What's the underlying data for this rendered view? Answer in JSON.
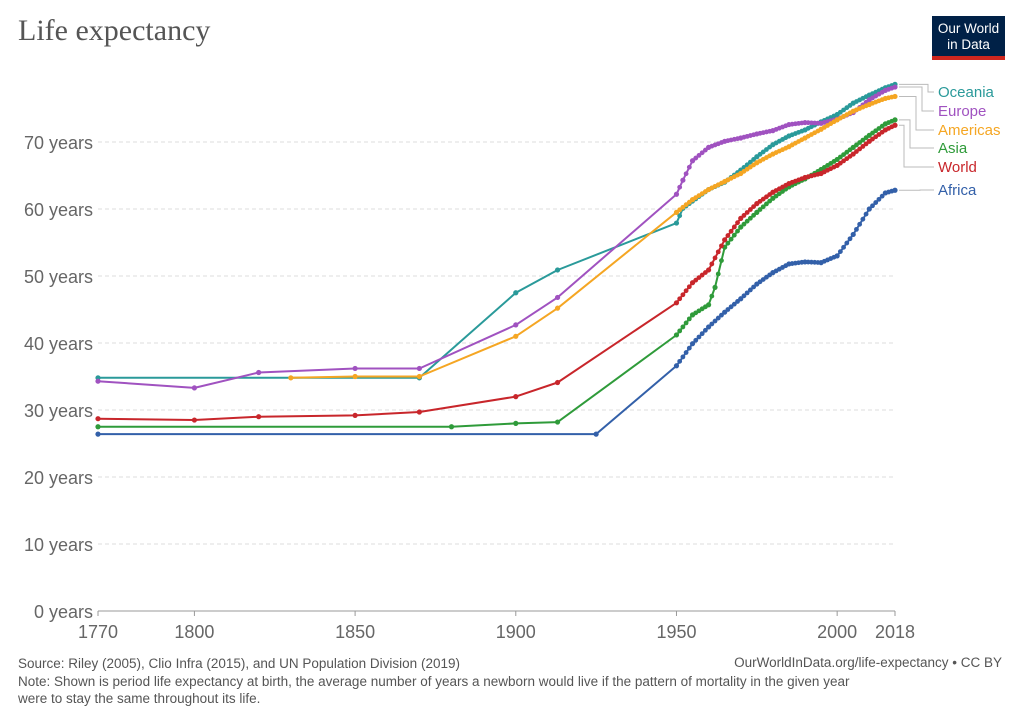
{
  "header": {
    "title": "Life expectancy",
    "logo_line1": "Our World",
    "logo_line2": "in Data"
  },
  "footer": {
    "source": "Source: Riley (2005), Clio Infra (2015), and UN Population Division (2019)",
    "url": "OurWorldInData.org/life-expectancy • CC BY",
    "note_line1": "Note: Shown is period life expectancy at birth, the average number of years a newborn would live if the pattern of mortality in the given year",
    "note_line2": "were to stay the same throughout its life."
  },
  "chart_data": {
    "type": "line",
    "title": "Life expectancy",
    "xlim": [
      1770,
      2018
    ],
    "ylim": [
      0,
      80
    ],
    "x_ticks": [
      1770,
      1800,
      1850,
      1900,
      1950,
      2000,
      2018
    ],
    "y_ticks": [
      {
        "value": 0,
        "label": "0 years"
      },
      {
        "value": 10,
        "label": "10 years"
      },
      {
        "value": 20,
        "label": "20 years"
      },
      {
        "value": 30,
        "label": "30 years"
      },
      {
        "value": 40,
        "label": "40 years"
      },
      {
        "value": 50,
        "label": "50 years"
      },
      {
        "value": 60,
        "label": "60 years"
      },
      {
        "value": 70,
        "label": "70 years"
      }
    ],
    "grid": "horizontal dashed",
    "legend": "right, end-of-line labels",
    "series": [
      {
        "name": "Oceania",
        "color": "#2a9a9a",
        "x": [
          1770,
          1870,
          1900,
          1913,
          1950,
          1952,
          1960,
          1965,
          1970,
          1975,
          1980,
          1985,
          1990,
          1995,
          2000,
          2005,
          2010,
          2015,
          2018
        ],
        "y": [
          34.8,
          34.8,
          47.5,
          50.9,
          57.9,
          60.1,
          62.9,
          64.0,
          65.8,
          67.8,
          69.6,
          70.9,
          71.8,
          73.0,
          74.1,
          75.8,
          77.0,
          78.1,
          78.6
        ]
      },
      {
        "name": "Europe",
        "color": "#a052c0",
        "x": [
          1770,
          1800,
          1820,
          1850,
          1870,
          1900,
          1913,
          1950,
          1952,
          1955,
          1960,
          1965,
          1970,
          1975,
          1980,
          1985,
          1990,
          1995,
          2000,
          2005,
          2010,
          2015,
          2018
        ],
        "y": [
          34.3,
          33.3,
          35.6,
          36.2,
          36.2,
          42.7,
          46.8,
          62.2,
          64.3,
          67.2,
          69.2,
          70.1,
          70.6,
          71.2,
          71.7,
          72.6,
          72.9,
          72.8,
          73.4,
          74.4,
          76.3,
          77.7,
          78.2
        ]
      },
      {
        "name": "Americas",
        "color": "#f5a623",
        "x": [
          1830,
          1850,
          1870,
          1900,
          1913,
          1950,
          1955,
          1960,
          1965,
          1970,
          1975,
          1980,
          1985,
          1990,
          1995,
          2000,
          2005,
          2010,
          2015,
          2018
        ],
        "y": [
          34.8,
          35.0,
          35.0,
          41.0,
          45.2,
          59.5,
          61.4,
          62.9,
          64.1,
          65.3,
          66.9,
          68.2,
          69.3,
          70.6,
          71.9,
          73.3,
          74.6,
          75.6,
          76.5,
          76.8
        ]
      },
      {
        "name": "Asia",
        "color": "#2f9b3a",
        "x": [
          1770,
          1880,
          1900,
          1913,
          1950,
          1955,
          1960,
          1962,
          1965,
          1970,
          1975,
          1980,
          1985,
          1990,
          1995,
          2000,
          2005,
          2010,
          2015,
          2018
        ],
        "y": [
          27.5,
          27.5,
          28.0,
          28.2,
          41.2,
          44.2,
          45.7,
          48.3,
          54.3,
          57.3,
          59.5,
          61.6,
          63.3,
          64.5,
          65.9,
          67.4,
          69.2,
          71.0,
          72.7,
          73.3
        ]
      },
      {
        "name": "World",
        "color": "#c8262b",
        "x": [
          1770,
          1800,
          1820,
          1850,
          1870,
          1900,
          1913,
          1950,
          1955,
          1960,
          1965,
          1970,
          1975,
          1980,
          1985,
          1990,
          1995,
          2000,
          2005,
          2010,
          2015,
          2018
        ],
        "y": [
          28.7,
          28.5,
          29.0,
          29.2,
          29.7,
          32.0,
          34.1,
          46.0,
          49.0,
          50.9,
          55.4,
          58.6,
          60.8,
          62.5,
          63.8,
          64.7,
          65.3,
          66.5,
          68.2,
          70.1,
          71.8,
          72.5
        ]
      },
      {
        "name": "Africa",
        "color": "#3360a9",
        "x": [
          1770,
          1925,
          1950,
          1955,
          1960,
          1965,
          1970,
          1975,
          1980,
          1985,
          1990,
          1995,
          2000,
          2005,
          2010,
          2015,
          2018
        ],
        "y": [
          26.4,
          26.4,
          36.6,
          39.9,
          42.4,
          44.6,
          46.6,
          48.8,
          50.5,
          51.8,
          52.1,
          52.0,
          53.0,
          56.2,
          60.0,
          62.4,
          62.8
        ]
      }
    ]
  }
}
